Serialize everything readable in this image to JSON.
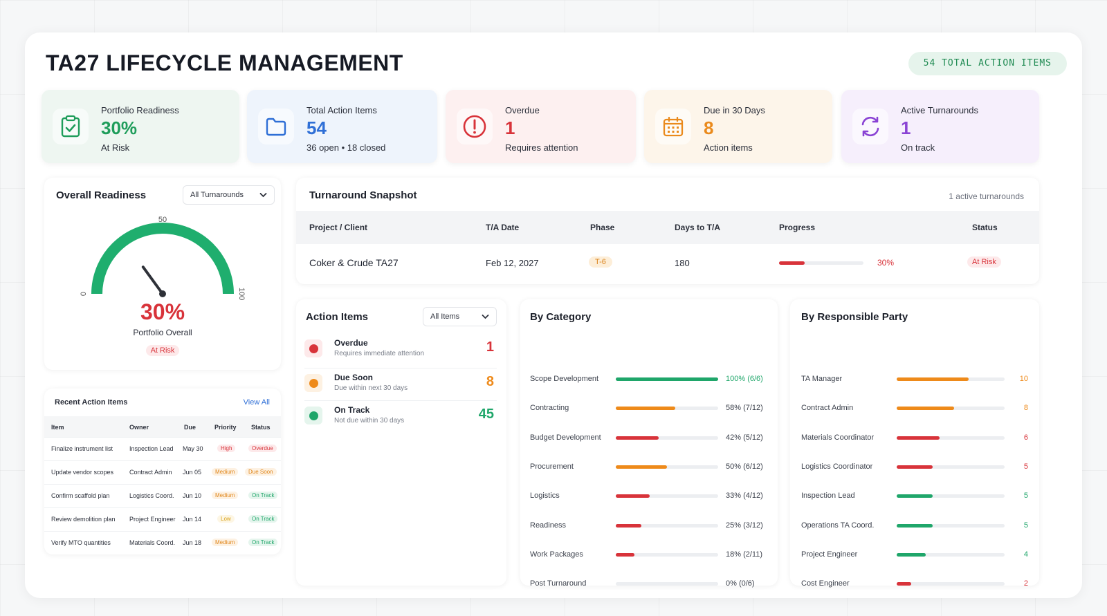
{
  "header": {
    "title": "TA27 LIFECYCLE MANAGEMENT",
    "total_pill": "54 TOTAL ACTION ITEMS"
  },
  "kpis": [
    {
      "label": "Portfolio Readiness",
      "value": "30%",
      "sub": "At Risk",
      "icon": "clipboard-check-icon",
      "color": "#1f9d5b",
      "bg": "#eef6f1"
    },
    {
      "label": "Total Action Items",
      "value": "54",
      "sub": "36 open • 18 closed",
      "icon": "folder-icon",
      "color": "#2f6fd6",
      "bg": "#eef4fc"
    },
    {
      "label": "Overdue",
      "value": "1",
      "sub": "Requires attention",
      "icon": "alert-circle-icon",
      "color": "#d8333a",
      "bg": "#fdf0f0"
    },
    {
      "label": "Due in 30 Days",
      "value": "8",
      "sub": "Action items",
      "icon": "calendar-icon",
      "color": "#ea8a1c",
      "bg": "#fdf5ea"
    },
    {
      "label": "Active Turnarounds",
      "value": "1",
      "sub": "On track",
      "icon": "refresh-icon",
      "color": "#8a43d4",
      "bg": "#f6effc"
    }
  ],
  "readiness": {
    "title": "Overall Readiness",
    "filter": "All Turnarounds",
    "gauge_value": 30,
    "tick_min": "0",
    "tick_mid": "50",
    "tick_max": "100",
    "value_label": "30%",
    "caption": "Portfolio Overall",
    "status": "At Risk"
  },
  "snapshot": {
    "title": "Turnaround Snapshot",
    "count_text": "1 active turnarounds",
    "columns": [
      "Project / Client",
      "T/A Date",
      "Phase",
      "Days to T/A",
      "Progress",
      "Status"
    ],
    "rows": [
      {
        "project": "Coker & Crude TA27",
        "date": "Feb 12, 2027",
        "phase": "T-6",
        "days": "180",
        "progress": 30,
        "progress_label": "30%",
        "status": "At Risk"
      }
    ]
  },
  "recent": {
    "title": "Recent Action Items",
    "view_all": "View All",
    "columns": [
      "Item",
      "Owner",
      "Due",
      "Priority",
      "Status"
    ],
    "rows": [
      {
        "item": "Finalize instrument list",
        "owner": "Inspection Lead",
        "due": "May 30",
        "priority": "High",
        "status": "Overdue"
      },
      {
        "item": "Update vendor scopes",
        "owner": "Contract Admin",
        "due": "Jun 05",
        "priority": "Medium",
        "status": "Due Soon"
      },
      {
        "item": "Confirm scaffold plan",
        "owner": "Logistics Coord.",
        "due": "Jun 10",
        "priority": "Medium",
        "status": "On Track"
      },
      {
        "item": "Review demolition plan",
        "owner": "Project Engineer",
        "due": "Jun 14",
        "priority": "Low",
        "status": "On Track"
      },
      {
        "item": "Verify MTO quantities",
        "owner": "Materials Coord.",
        "due": "Jun 18",
        "priority": "Medium",
        "status": "On Track"
      }
    ]
  },
  "action_items": {
    "title": "Action Items",
    "filter": "All Items",
    "rows": [
      {
        "title": "Overdue",
        "sub": "Requires immediate attention",
        "count": "1",
        "color": "#d8333a",
        "bg": "#fde9ea"
      },
      {
        "title": "Due Soon",
        "sub": "Due within next 30 days",
        "count": "8",
        "color": "#ee8a1a",
        "bg": "#fdf1e2"
      },
      {
        "title": "On Track",
        "sub": "Not due within 30 days",
        "count": "45",
        "color": "#1fa66a",
        "bg": "#e5f5ed"
      }
    ]
  },
  "by_category": {
    "title": "By Category",
    "rows": [
      {
        "label": "Scope Development",
        "pct": 100,
        "value": "100% (6/6)",
        "color": "#1fa66a"
      },
      {
        "label": "Contracting",
        "pct": 58,
        "value": "58% (7/12)",
        "color": "#ee8a1a"
      },
      {
        "label": "Budget Development",
        "pct": 42,
        "value": "42% (5/12)",
        "color": "#d8333a"
      },
      {
        "label": "Procurement",
        "pct": 50,
        "value": "50% (6/12)",
        "color": "#ee8a1a"
      },
      {
        "label": "Logistics",
        "pct": 33,
        "value": "33% (4/12)",
        "color": "#d8333a"
      },
      {
        "label": "Readiness",
        "pct": 25,
        "value": "25% (3/12)",
        "color": "#d8333a"
      },
      {
        "label": "Work Packages",
        "pct": 18,
        "value": "18% (2/11)",
        "color": "#d8333a"
      },
      {
        "label": "Post Turnaround",
        "pct": 0,
        "value": "0% (0/6)",
        "color": "#d8333a"
      }
    ]
  },
  "by_party": {
    "title": "By Responsible Party",
    "max": 15,
    "rows": [
      {
        "label": "TA Manager",
        "count": 10,
        "color": "#ee8a1a"
      },
      {
        "label": "Contract Admin",
        "count": 8,
        "color": "#ee8a1a"
      },
      {
        "label": "Materials Coordinator",
        "count": 6,
        "color": "#d8333a"
      },
      {
        "label": "Logistics Coordinator",
        "count": 5,
        "color": "#d8333a"
      },
      {
        "label": "Inspection Lead",
        "count": 5,
        "color": "#1fa66a"
      },
      {
        "label": "Operations TA Coord.",
        "count": 5,
        "color": "#1fa66a"
      },
      {
        "label": "Project Engineer",
        "count": 4,
        "color": "#1fa66a"
      },
      {
        "label": "Cost Engineer",
        "count": 2,
        "color": "#d8333a"
      }
    ]
  }
}
